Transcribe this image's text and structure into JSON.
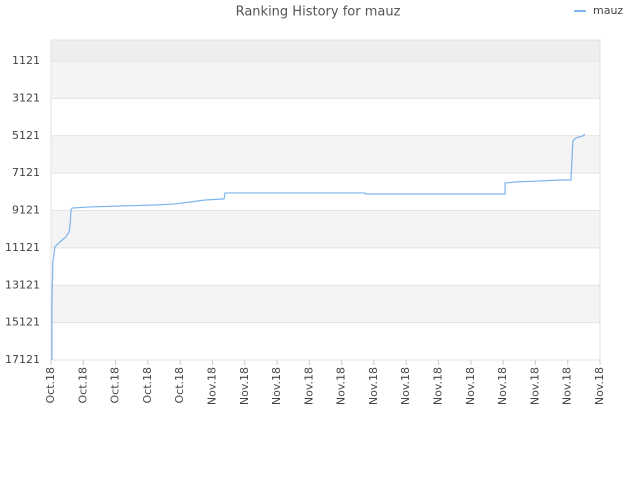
{
  "chart_data": {
    "type": "line",
    "title": "Ranking History for mauz",
    "y_inverted": true,
    "ylim": [
      17121,
      -3
    ],
    "yticks": [
      1121,
      3121,
      5121,
      7121,
      9121,
      11121,
      13121,
      15121,
      17121
    ],
    "xlim": [
      0,
      17
    ],
    "xticks": [
      {
        "value": 0,
        "label": "Oct.18"
      },
      {
        "value": 1,
        "label": "Oct.18"
      },
      {
        "value": 2,
        "label": "Oct.18"
      },
      {
        "value": 3,
        "label": "Oct.18"
      },
      {
        "value": 4,
        "label": "Oct.18"
      },
      {
        "value": 5,
        "label": "Nov.18"
      },
      {
        "value": 6,
        "label": "Nov.18"
      },
      {
        "value": 7,
        "label": "Nov.18"
      },
      {
        "value": 8,
        "label": "Nov.18"
      },
      {
        "value": 9,
        "label": "Nov.18"
      },
      {
        "value": 10,
        "label": "Nov.18"
      },
      {
        "value": 11,
        "label": "Nov.18"
      },
      {
        "value": 12,
        "label": "Nov.18"
      },
      {
        "value": 13,
        "label": "Nov.18"
      },
      {
        "value": 14,
        "label": "Nov.18"
      },
      {
        "value": 15,
        "label": "Nov.18"
      },
      {
        "value": 16,
        "label": "Nov.18"
      },
      {
        "value": 17,
        "label": "Nov.18"
      }
    ],
    "grid": true,
    "legend": "top-right",
    "series": [
      {
        "name": "mauz",
        "color": "#7cb5ec",
        "x": [
          0.03,
          0.03,
          0.06,
          0.12,
          0.28,
          0.46,
          0.56,
          0.59,
          0.62,
          0.65,
          1.21,
          2.14,
          3.22,
          3.84,
          4.3,
          4.77,
          5.36,
          5.39,
          9.72,
          9.75,
          14.06,
          14.06,
          14.37,
          15.14,
          15.76,
          16.1,
          16.13,
          16.16,
          16.25,
          16.47,
          16.53
        ],
        "values": [
          17121,
          13900,
          11875,
          11072,
          10800,
          10540,
          10270,
          9900,
          9090,
          8990,
          8930,
          8880,
          8825,
          8770,
          8665,
          8560,
          8500,
          8180,
          8180,
          8236,
          8236,
          7650,
          7595,
          7540,
          7490,
          7490,
          6525,
          5400,
          5240,
          5130,
          5026
        ]
      }
    ]
  }
}
